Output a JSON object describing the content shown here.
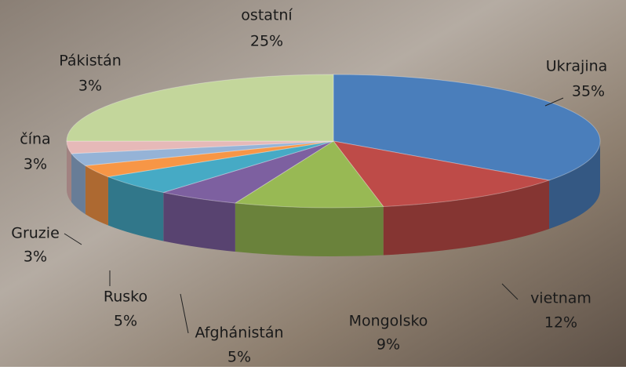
{
  "chart_data": {
    "type": "pie",
    "categories": [
      "Ukrajina",
      "vietnam",
      "Mongolsko",
      "Afghánistán",
      "Rusko",
      "Gruzie",
      "čína",
      "Pákistán",
      "ostatní"
    ],
    "values": [
      35,
      12,
      9,
      5,
      5,
      3,
      3,
      3,
      25
    ],
    "value_labels": [
      "35%",
      "12%",
      "9%",
      "5%",
      "5%",
      "3%",
      "3%",
      "3%",
      "25%"
    ],
    "colors": [
      "#4a7ebb",
      "#be4b48",
      "#98b954",
      "#7d60a0",
      "#46aac5",
      "#f79646",
      "#95b3d7",
      "#e6b9b8",
      "#c3d69b"
    ]
  }
}
